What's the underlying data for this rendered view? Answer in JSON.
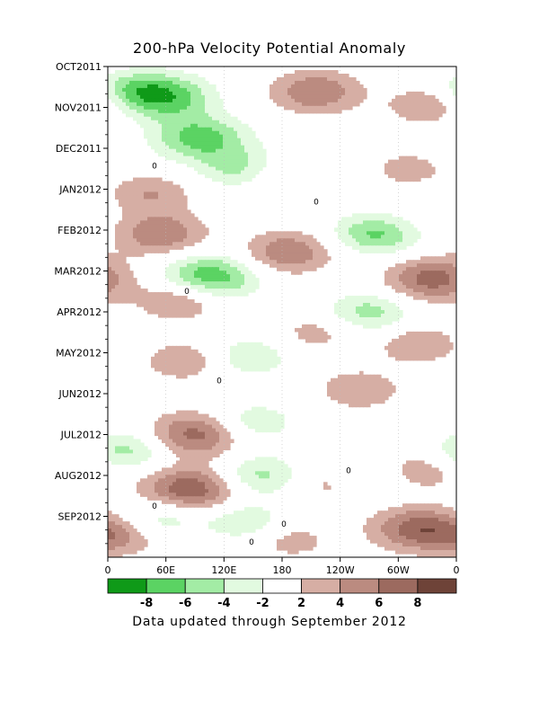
{
  "chart_data": {
    "type": "heatmap",
    "title": "200-hPa Velocity Potential Anomaly",
    "footer": "Data updated through September 2012",
    "x_ticks": [
      "0",
      "60E",
      "120E",
      "180",
      "120W",
      "60W",
      "0"
    ],
    "x_tick_lon": [
      0,
      60,
      120,
      180,
      240,
      300,
      360
    ],
    "x_range": [
      0,
      360
    ],
    "y_ticks": [
      "OCT2011",
      "NOV2011",
      "DEC2011",
      "JAN2012",
      "FEB2012",
      "MAR2012",
      "APR2012",
      "MAY2012",
      "JUN2012",
      "JUL2012",
      "AUG2012",
      "SEP2012"
    ],
    "y_range_months": [
      0,
      12
    ],
    "colorbar": {
      "labels": [
        "-8",
        "-6",
        "-4",
        "-2",
        "2",
        "4",
        "6",
        "8"
      ],
      "levels": [
        -8,
        -6,
        -4,
        -2,
        2,
        4,
        6,
        8
      ],
      "colors": [
        "#0f9a18",
        "#5bd363",
        "#a3eca5",
        "#e2fae0",
        "#ffffff",
        "#d6aea4",
        "#bb8b80",
        "#9c6a5f",
        "#6e4338"
      ]
    },
    "contour_label": "0",
    "anomalies": [
      {
        "lon": 60,
        "t": 0.75,
        "value": -7
      },
      {
        "lon": 25,
        "t": 0.55,
        "value": -4
      },
      {
        "lon": 215,
        "t": 0.62,
        "value": 6
      },
      {
        "lon": 330,
        "t": 0.95,
        "value": 4
      },
      {
        "lon": 95,
        "t": 1.75,
        "value": -7
      },
      {
        "lon": 140,
        "t": 2.5,
        "value": -5
      },
      {
        "lon": 175,
        "t": 2.65,
        "value": 3
      },
      {
        "lon": 310,
        "t": 2.5,
        "value": 3
      },
      {
        "lon": 45,
        "t": 3.1,
        "value": 4
      },
      {
        "lon": 55,
        "t": 4.1,
        "value": 6
      },
      {
        "lon": 185,
        "t": 4.55,
        "value": 6
      },
      {
        "lon": 265,
        "t": 4.0,
        "value": -3
      },
      {
        "lon": 285,
        "t": 4.2,
        "value": -4
      },
      {
        "lon": 105,
        "t": 5.15,
        "value": -8
      },
      {
        "lon": 335,
        "t": 5.2,
        "value": 7
      },
      {
        "lon": 75,
        "t": 5.7,
        "value": 5
      },
      {
        "lon": 270,
        "t": 6.0,
        "value": -5
      },
      {
        "lon": 215,
        "t": 6.5,
        "value": 3
      },
      {
        "lon": 320,
        "t": 6.8,
        "value": 4
      },
      {
        "lon": 145,
        "t": 7.1,
        "value": -4
      },
      {
        "lon": 80,
        "t": 7.2,
        "value": 4
      },
      {
        "lon": 260,
        "t": 7.9,
        "value": 4
      },
      {
        "lon": 150,
        "t": 8.7,
        "value": -4
      },
      {
        "lon": 90,
        "t": 9.0,
        "value": 7
      },
      {
        "lon": 20,
        "t": 9.4,
        "value": -5
      },
      {
        "lon": 320,
        "t": 9.9,
        "value": 4
      },
      {
        "lon": 85,
        "t": 10.35,
        "value": 8
      },
      {
        "lon": 155,
        "t": 10.0,
        "value": -5
      },
      {
        "lon": 275,
        "t": 10.1,
        "value": -3
      },
      {
        "lon": 230,
        "t": 10.2,
        "value": 3
      },
      {
        "lon": 55,
        "t": 11.0,
        "value": -4
      },
      {
        "lon": 140,
        "t": 11.1,
        "value": -4
      },
      {
        "lon": 320,
        "t": 11.3,
        "value": 7
      },
      {
        "lon": 10,
        "t": 11.5,
        "value": 4
      },
      {
        "lon": 190,
        "t": 11.6,
        "value": 3
      }
    ]
  }
}
